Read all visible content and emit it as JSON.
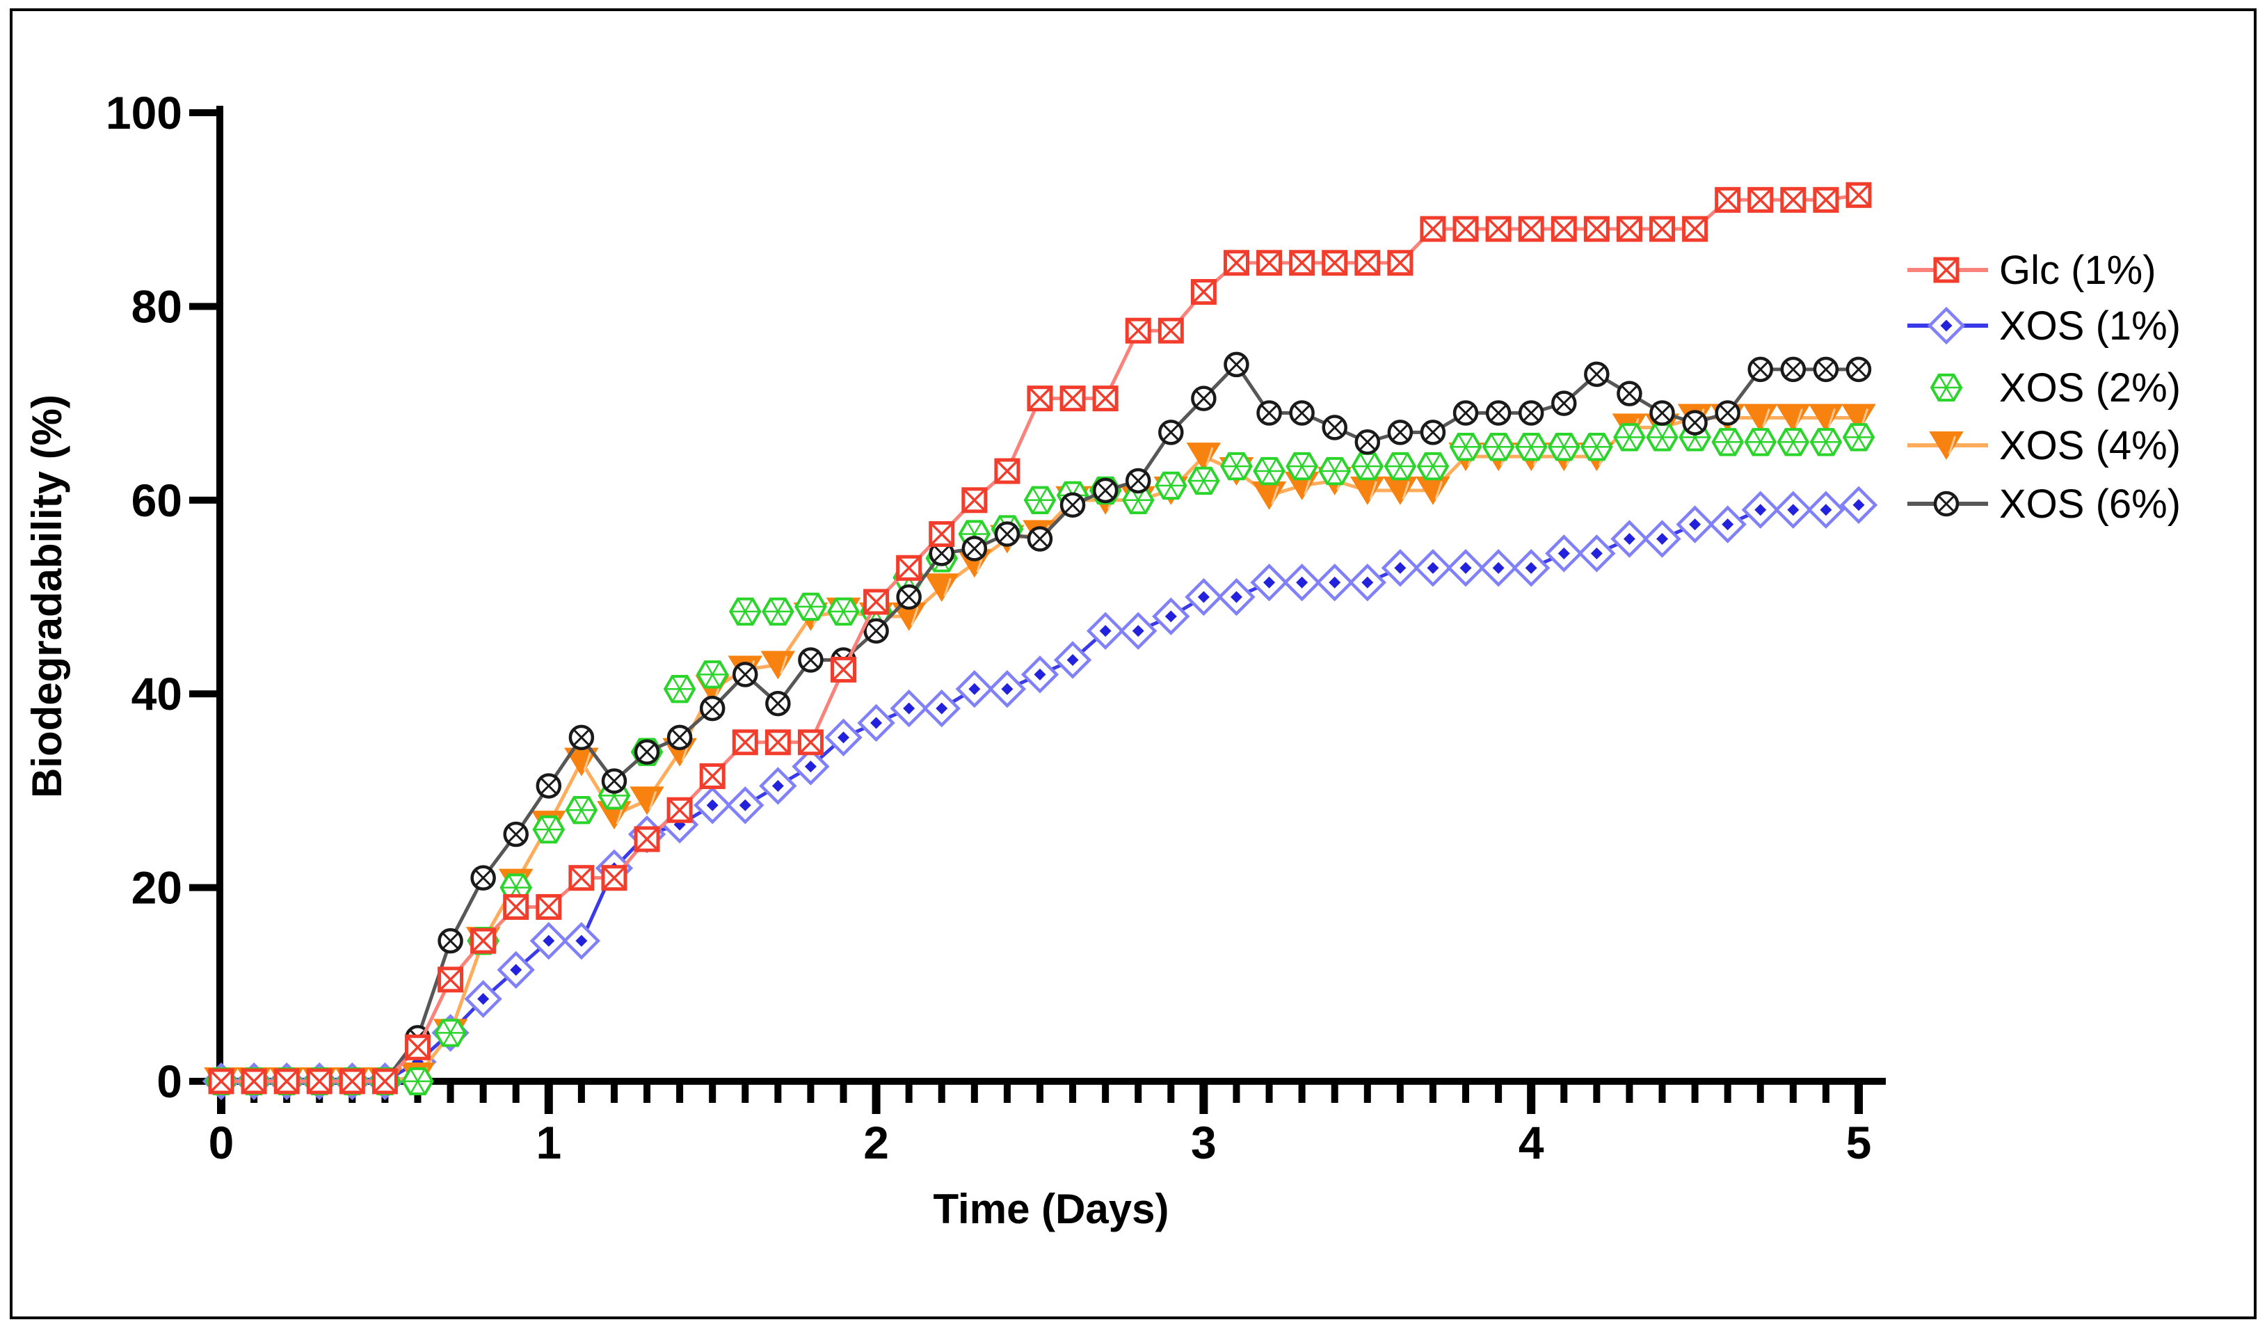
{
  "figure": {
    "background": "#ffffff",
    "border_color": "#000000"
  },
  "axes": {
    "x": {
      "title": "Time (Days)",
      "min": 0,
      "max": 5,
      "major_ticks": [
        0,
        1,
        2,
        3,
        4,
        5
      ],
      "minor_tick_interval": 0.1
    },
    "y": {
      "title": "Biodegradability (%)",
      "min": 0,
      "max": 100,
      "major_ticks": [
        0,
        20,
        40,
        60,
        80,
        100
      ]
    }
  },
  "legend": {
    "position": "right",
    "items": [
      {
        "label": "Glc (1%)",
        "marker": "square-x",
        "color": "#F23C2C",
        "line_color": "#F9837B"
      },
      {
        "label": "XOS (1%)",
        "marker": "diamond-dot",
        "color": "#2222DD",
        "line_color": "#3A3AE8",
        "secondary_color": "#8080F8"
      },
      {
        "label": "XOS (2%)",
        "marker": "hexagon-spokes",
        "color": "#2BD42B",
        "line_color": null
      },
      {
        "label": "XOS (4%)",
        "marker": "triangle-down",
        "color": "#F8820F",
        "line_color": "#FFAD5C"
      },
      {
        "label": "XOS (6%)",
        "marker": "circle-x",
        "color": "#1A1A1A",
        "line_color": "#575757"
      }
    ]
  },
  "chart_data": {
    "type": "line",
    "title": "",
    "xlabel": "Time (Days)",
    "ylabel": "Biodegradability (%)",
    "xlim": [
      0,
      5.1
    ],
    "ylim": [
      0,
      100
    ],
    "grid": false,
    "legend_position": "right",
    "x": [
      0.0,
      0.1,
      0.2,
      0.3,
      0.4,
      0.5,
      0.6,
      0.7,
      0.8,
      0.9,
      1.0,
      1.1,
      1.2,
      1.3,
      1.4,
      1.5,
      1.6,
      1.7,
      1.8,
      1.9,
      2.0,
      2.1,
      2.2,
      2.3,
      2.4,
      2.5,
      2.6,
      2.7,
      2.8,
      2.9,
      3.0,
      3.1,
      3.2,
      3.3,
      3.4,
      3.5,
      3.6,
      3.7,
      3.8,
      3.9,
      4.0,
      4.1,
      4.2,
      4.3,
      4.4,
      4.5,
      4.6,
      4.7,
      4.8,
      4.9,
      5.0
    ],
    "series": [
      {
        "name": "Glc (1%)",
        "marker": "square-x",
        "color": "#F23C2C",
        "line_color": "#F9837B",
        "line": true,
        "values": [
          0,
          0,
          0,
          0,
          0,
          0,
          3.5,
          10.5,
          14.5,
          18,
          18,
          21,
          21,
          25,
          28,
          31.5,
          35,
          35,
          35,
          42.5,
          49.5,
          53,
          56.5,
          60,
          63,
          70.5,
          70.5,
          70.5,
          77.5,
          77.5,
          81.5,
          84.5,
          84.5,
          84.5,
          84.5,
          84.5,
          84.5,
          88,
          88,
          88,
          88,
          88,
          88,
          88,
          88,
          88,
          91,
          91,
          91,
          91,
          91.5
        ]
      },
      {
        "name": "XOS (1%)",
        "marker": "diamond-dot",
        "color": "#2222DD",
        "line_color": "#3A3AE8",
        "secondary_color": "#8080F8",
        "line": true,
        "values": [
          0,
          0,
          0,
          0,
          0,
          0,
          2,
          5,
          8.5,
          11.5,
          14.5,
          14.5,
          22,
          25.5,
          26.5,
          28.5,
          28.5,
          30.5,
          32.5,
          35.5,
          37,
          38.5,
          38.5,
          40.5,
          40.5,
          42,
          43.5,
          46.5,
          46.5,
          48,
          50,
          50,
          51.5,
          51.5,
          51.5,
          51.5,
          53,
          53,
          53,
          53,
          53,
          54.5,
          54.5,
          56,
          56,
          57.5,
          57.5,
          59,
          59,
          59,
          59.5
        ]
      },
      {
        "name": "XOS (2%)",
        "marker": "hexagon-spokes",
        "color": "#2BD42B",
        "line_color": null,
        "line": false,
        "values": [
          0,
          0,
          0,
          0,
          0,
          0,
          0,
          5,
          14.5,
          20,
          26,
          28,
          29.5,
          34,
          40.5,
          42,
          48.5,
          48.5,
          49,
          48.5,
          48.5,
          52,
          54,
          56.5,
          57,
          60,
          60.5,
          61,
          60,
          61.5,
          62,
          63.5,
          63,
          63.5,
          63,
          63.5,
          63.5,
          63.5,
          65.5,
          65.5,
          65.5,
          65.5,
          65.5,
          66.5,
          66.5,
          66.5,
          66,
          66,
          66,
          66,
          66.5
        ]
      },
      {
        "name": "XOS (4%)",
        "marker": "triangle-down",
        "color": "#F8820F",
        "line_color": "#FFAD5C",
        "line": true,
        "values": [
          0,
          0,
          0,
          0,
          0,
          0,
          0.5,
          5,
          14.5,
          20.5,
          26.5,
          33,
          27.5,
          29,
          34,
          40.5,
          42.5,
          43,
          48,
          48.5,
          48,
          48,
          51,
          53.5,
          56,
          56.5,
          60,
          60,
          60,
          61,
          64.5,
          63,
          60.5,
          61.5,
          62,
          61,
          61,
          61,
          64.5,
          64.5,
          64.5,
          64.5,
          64.5,
          67.5,
          67.5,
          68.5,
          68.5,
          68.5,
          68.5,
          68.5,
          68.5
        ]
      },
      {
        "name": "XOS (6%)",
        "marker": "circle-x",
        "color": "#1A1A1A",
        "line_color": "#575757",
        "line": true,
        "values": [
          0,
          0,
          0,
          0,
          0,
          0,
          4.5,
          14.5,
          21,
          25.5,
          30.5,
          35.5,
          31,
          34,
          35.5,
          38.5,
          42,
          39,
          43.5,
          43.5,
          46.5,
          50,
          54.5,
          55,
          56.5,
          56,
          59.5,
          61,
          62,
          67,
          70.5,
          74,
          69,
          69,
          67.5,
          66,
          67,
          67,
          69,
          69,
          69,
          70,
          73,
          71,
          69,
          68,
          69,
          73.5,
          73.5,
          73.5,
          73.5
        ]
      }
    ]
  }
}
